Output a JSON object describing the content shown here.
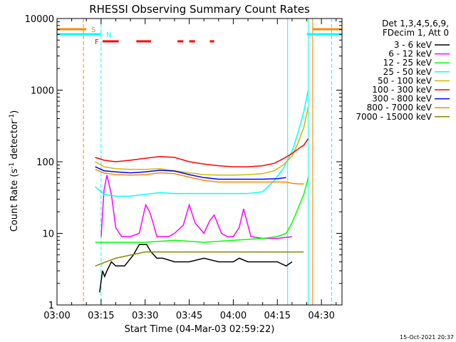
{
  "chart_data": {
    "type": "line",
    "title": "RHESSI Observing Summary Count Rates",
    "xlabel": "Start Time (04-Mar-03 02:59:22)",
    "ylabel": "Count Rate (s",
    "ylabel_sup1": "-1",
    "ylabel_mid": " detector",
    "ylabel_sup2": "-1",
    "ylabel_end": ")",
    "footer_date": "15-Oct-2021 20:37",
    "y_scale": "log",
    "ylim": [
      1,
      10000
    ],
    "xlim": [
      "03:00",
      "04:37"
    ],
    "x_ticks": [
      "03:00",
      "03:15",
      "03:30",
      "03:45",
      "04:00",
      "04:15",
      "04:30"
    ],
    "y_ticks": [
      "1",
      "10",
      "100",
      "1000",
      "10000"
    ],
    "legend_header": [
      "Det 1,3,4,5,6,9,",
      "FDecim 1, Att 0"
    ],
    "legend_position": "right",
    "series": [
      {
        "name": "3 - 6 keV",
        "color": "#000000",
        "x": [
          14.5,
          15.5,
          16.2,
          17,
          18.5,
          20,
          23,
          26,
          28,
          30.5,
          32,
          34,
          36,
          40,
          45,
          50,
          55,
          60,
          62,
          65,
          70,
          75,
          78,
          80
        ],
        "y": [
          1.5,
          3,
          2.5,
          3,
          4,
          3.5,
          3.5,
          5,
          7,
          7,
          5.5,
          4.5,
          4.5,
          4,
          4,
          4.5,
          4,
          4,
          4.5,
          4,
          4,
          4,
          3.5,
          4
        ]
      },
      {
        "name": "6 - 12 keV",
        "color": "#ff00ff",
        "x": [
          15,
          16,
          17,
          18.5,
          20,
          22,
          25,
          28,
          30.2,
          31.5,
          32.5,
          34,
          36.5,
          38,
          40,
          43,
          45,
          47,
          50,
          52,
          53.5,
          56,
          58,
          60,
          62,
          63.5,
          66,
          70,
          75,
          80
        ],
        "y": [
          9,
          40,
          65,
          35,
          12,
          9,
          9,
          10,
          25,
          20,
          15,
          9,
          9,
          9,
          10,
          13,
          25,
          14,
          10,
          15,
          18,
          10,
          9,
          9,
          12,
          22,
          9,
          8.5,
          8.5,
          9
        ]
      },
      {
        "name": "12 - 25 keV",
        "color": "#00ff00",
        "x": [
          13,
          20,
          30,
          40,
          50,
          60,
          70,
          75,
          78,
          80,
          82,
          84,
          85.5
        ],
        "y": [
          7.5,
          7.5,
          7.5,
          8,
          7.5,
          8,
          8.5,
          9,
          10,
          14,
          22,
          35,
          60
        ]
      },
      {
        "name": "25 - 50 keV",
        "color": "#00ffff",
        "x": [
          13,
          16,
          20,
          25,
          30,
          35,
          40,
          45,
          50,
          55,
          60,
          65,
          70,
          74,
          77,
          80,
          82,
          84,
          85.5
        ],
        "y": [
          45,
          35,
          33,
          33,
          35,
          37,
          36,
          36,
          36,
          36,
          36,
          36,
          38,
          55,
          80,
          140,
          250,
          500,
          1000
        ]
      },
      {
        "name": "50 - 100 keV",
        "color": "#ccbb00",
        "x": [
          13,
          16,
          20,
          25,
          30,
          35,
          40,
          45,
          50,
          55,
          60,
          65,
          70,
          74,
          77,
          80,
          82,
          84,
          85.5
        ],
        "y": [
          100,
          85,
          80,
          78,
          78,
          80,
          75,
          70,
          66,
          65,
          65,
          66,
          68,
          75,
          90,
          120,
          180,
          300,
          580
        ]
      },
      {
        "name": "100 - 300 keV",
        "color": "#ff0000",
        "x": [
          13,
          16,
          20,
          25,
          30,
          35,
          40,
          45,
          50,
          55,
          60,
          65,
          70,
          74,
          77,
          80,
          82,
          84,
          85.5
        ],
        "y": [
          115,
          105,
          100,
          105,
          112,
          118,
          115,
          100,
          93,
          88,
          85,
          85,
          88,
          95,
          110,
          130,
          150,
          170,
          210
        ]
      },
      {
        "name": "300 - 800 keV",
        "color": "#0000ff",
        "x": [
          13,
          16,
          20,
          25,
          30,
          35,
          40,
          45,
          50,
          55,
          60,
          65,
          70,
          75,
          78
        ],
        "y": [
          85,
          75,
          72,
          70,
          72,
          76,
          74,
          66,
          60,
          57,
          57,
          57,
          57,
          58,
          60
        ]
      },
      {
        "name": "800 - 7000 keV",
        "color": "#ff8800",
        "x": [
          13,
          16,
          20,
          25,
          30,
          35,
          40,
          45,
          50,
          55,
          60,
          65,
          70,
          75,
          78,
          80,
          82,
          84
        ],
        "y": [
          78,
          70,
          66,
          65,
          66,
          70,
          68,
          61,
          55,
          52,
          52,
          52,
          52,
          52,
          52,
          50,
          49,
          49
        ]
      },
      {
        "name": "7000 - 15000 keV",
        "color": "#888800",
        "x": [
          13,
          20,
          30,
          40,
          50,
          60,
          70,
          75,
          80,
          84
        ],
        "y": [
          3.5,
          4.5,
          5.5,
          5.5,
          5.5,
          5.5,
          5.5,
          5.5,
          5.5,
          5.5
        ]
      }
    ],
    "annotations": [
      "S",
      "N",
      "F"
    ],
    "flag_colors": {
      "S": "#ff8800",
      "N": "#00ffff",
      "F": "#ff0000"
    },
    "flag_segments": {
      "S": [
        [
          0,
          10
        ],
        [
          87,
          97
        ]
      ],
      "N": [
        [
          0,
          15
        ],
        [
          85,
          97
        ]
      ],
      "F": [
        [
          15.5,
          21
        ],
        [
          27,
          32
        ],
        [
          41,
          43
        ],
        [
          45,
          47
        ],
        [
          52,
          53.5
        ]
      ]
    },
    "vertical_lines": [
      {
        "x": 0,
        "color": "#00ffff",
        "style": "solid"
      },
      {
        "x": 9,
        "color": "#ff8800",
        "style": "dash"
      },
      {
        "x": 15,
        "color": "#00ffff",
        "style": "dash"
      },
      {
        "x": 78.5,
        "color": "#00ffff",
        "style": "solid"
      },
      {
        "x": 85.5,
        "color": "#00ffff",
        "style": "solid"
      },
      {
        "x": 87,
        "color": "#ff8800",
        "style": "solid"
      },
      {
        "x": 93.5,
        "color": "#00ffff",
        "style": "dash"
      }
    ]
  }
}
